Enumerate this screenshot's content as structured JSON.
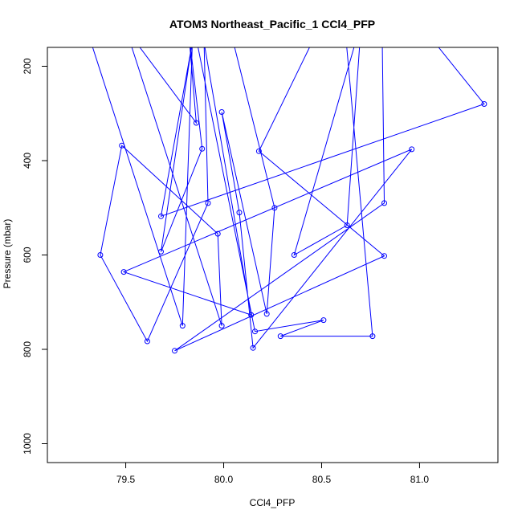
{
  "chart_data": {
    "type": "line",
    "title": "ATOM3 Northeast_Pacific_1 CCl4_PFP",
    "xlabel": "CCl4_PFP",
    "ylabel": "Pressure (mbar)",
    "xlim": [
      79.1,
      81.4
    ],
    "ylim": [
      1040,
      160
    ],
    "y_reversed": true,
    "x_ticks": [
      79.5,
      80.0,
      80.5,
      81.0
    ],
    "x_tick_labels": [
      "79.5",
      "80.0",
      "80.5",
      "81.0"
    ],
    "y_ticks": [
      200,
      400,
      600,
      800,
      1000
    ],
    "y_tick_labels": [
      "200",
      "400",
      "600",
      "800",
      "1000"
    ],
    "grid": false,
    "series": [
      {
        "color": "#0000ff",
        "points": [
          {
            "x": 79.3,
            "y": 120,
            "marker": false
          },
          {
            "x": 79.79,
            "y": 750,
            "marker": true
          },
          {
            "x": 79.84,
            "y": 150,
            "marker": false
          },
          {
            "x": 79.68,
            "y": 518,
            "marker": true
          },
          {
            "x": 81.33,
            "y": 280,
            "marker": true
          },
          {
            "x": 81.02,
            "y": 120,
            "marker": false
          },
          {
            "x": 80.92,
            "y": 110,
            "marker": false
          },
          {
            "x": 81.23,
            "y": 120,
            "marker": false
          },
          {
            "x": 81.0,
            "y": 100,
            "marker": false
          },
          {
            "x": 80.81,
            "y": 160,
            "marker": false
          },
          {
            "x": 80.82,
            "y": 490,
            "marker": true
          },
          {
            "x": 79.75,
            "y": 803,
            "marker": true
          },
          {
            "x": 80.82,
            "y": 602,
            "marker": true
          },
          {
            "x": 80.18,
            "y": 380,
            "marker": true
          },
          {
            "x": 80.45,
            "y": 150,
            "marker": false
          },
          {
            "x": 80.05,
            "y": 150,
            "marker": false
          },
          {
            "x": 80.26,
            "y": 500,
            "marker": true
          },
          {
            "x": 80.22,
            "y": 725,
            "marker": true
          },
          {
            "x": 79.99,
            "y": 297,
            "marker": true
          },
          {
            "x": 80.08,
            "y": 510,
            "marker": true
          },
          {
            "x": 80.15,
            "y": 797,
            "marker": true
          },
          {
            "x": 80.96,
            "y": 376,
            "marker": true
          },
          {
            "x": 79.49,
            "y": 636,
            "marker": true
          },
          {
            "x": 80.14,
            "y": 727,
            "marker": true
          },
          {
            "x": 79.9,
            "y": 150,
            "marker": false
          },
          {
            "x": 79.92,
            "y": 490,
            "marker": true
          },
          {
            "x": 79.61,
            "y": 783,
            "marker": true
          },
          {
            "x": 79.37,
            "y": 600,
            "marker": true
          },
          {
            "x": 79.48,
            "y": 368,
            "marker": true
          },
          {
            "x": 79.97,
            "y": 555,
            "marker": true
          },
          {
            "x": 79.99,
            "y": 750,
            "marker": true
          },
          {
            "x": 79.5,
            "y": 120,
            "marker": false
          },
          {
            "x": 79.86,
            "y": 320,
            "marker": true
          },
          {
            "x": 79.82,
            "y": 120,
            "marker": false
          },
          {
            "x": 79.89,
            "y": 375,
            "marker": true
          },
          {
            "x": 79.68,
            "y": 593,
            "marker": true
          },
          {
            "x": 79.85,
            "y": 120,
            "marker": false
          },
          {
            "x": 80.16,
            "y": 762,
            "marker": true
          },
          {
            "x": 80.51,
            "y": 738,
            "marker": true
          },
          {
            "x": 80.29,
            "y": 772,
            "marker": true
          },
          {
            "x": 80.76,
            "y": 772,
            "marker": true
          },
          {
            "x": 80.62,
            "y": 120,
            "marker": false
          },
          {
            "x": 80.7,
            "y": 120,
            "marker": false
          },
          {
            "x": 80.63,
            "y": 537,
            "marker": true
          },
          {
            "x": 80.36,
            "y": 600,
            "marker": true
          },
          {
            "x": 80.7,
            "y": 110,
            "marker": false
          }
        ]
      }
    ]
  }
}
